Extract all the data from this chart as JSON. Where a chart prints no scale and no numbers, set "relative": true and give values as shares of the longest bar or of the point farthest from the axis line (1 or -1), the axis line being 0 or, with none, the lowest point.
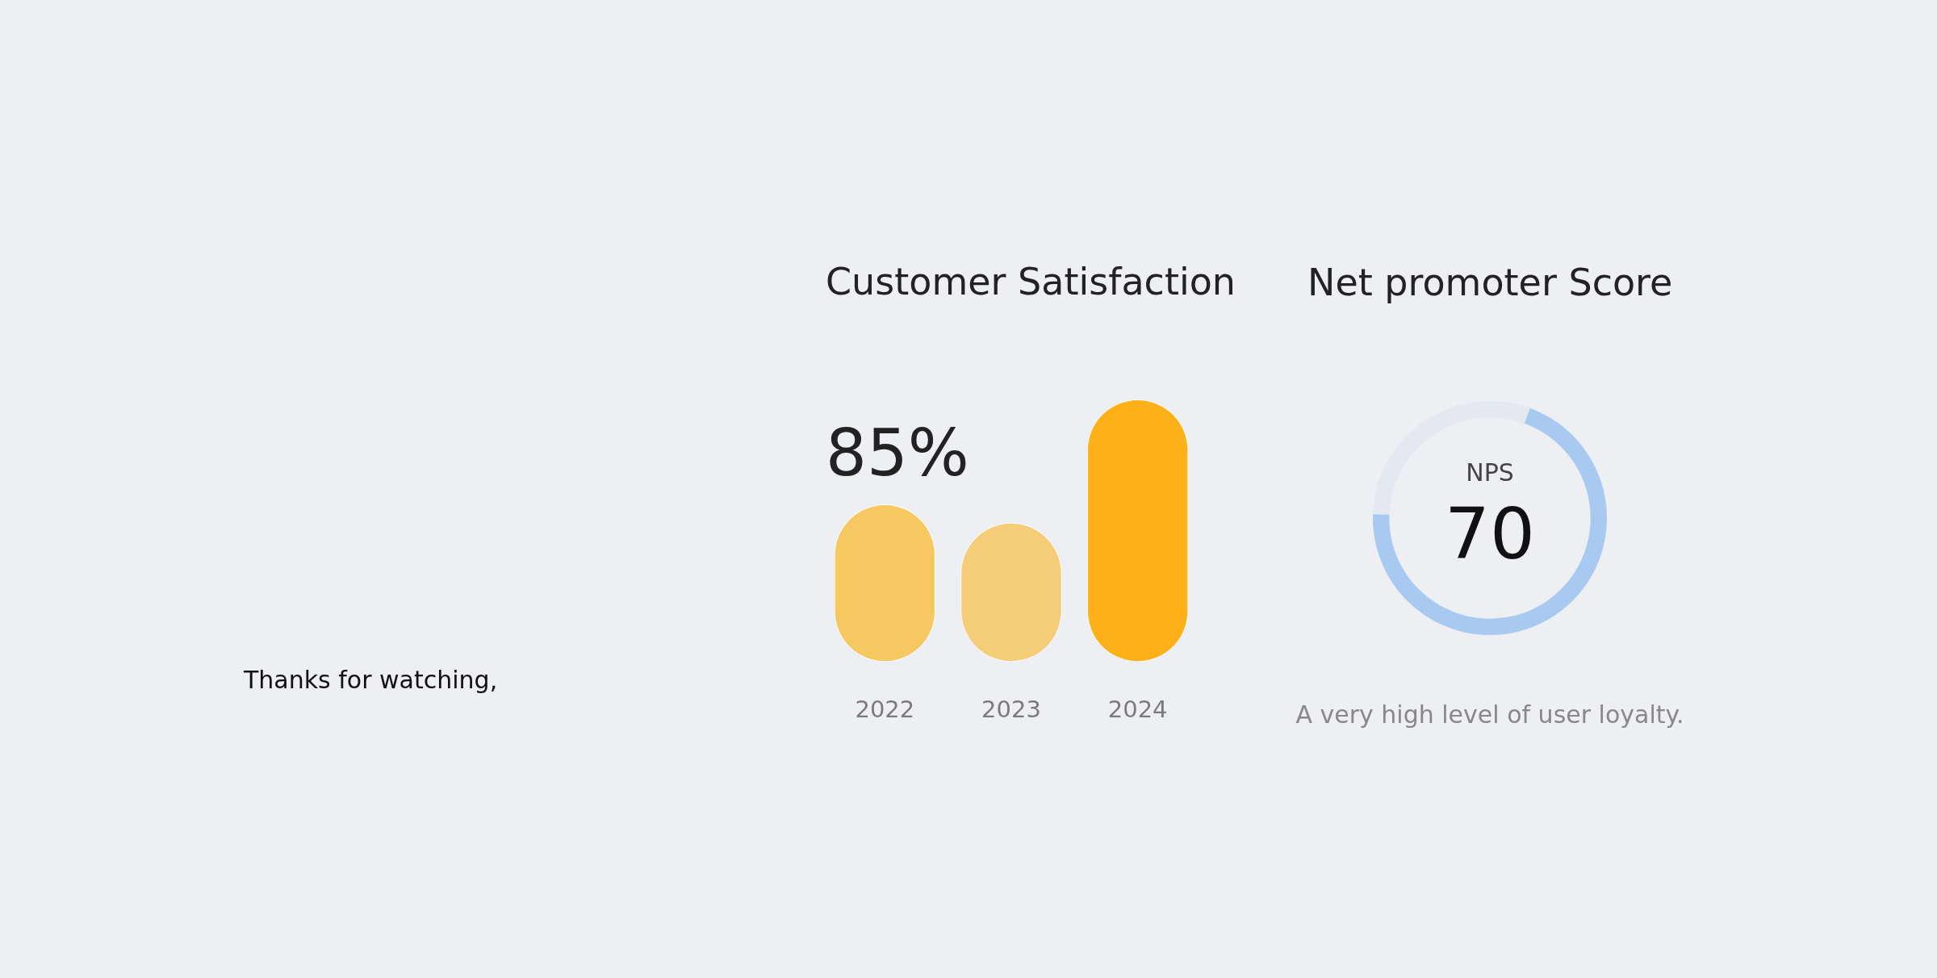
{
  "chart_data": [
    {
      "type": "bar",
      "title": "Customer Satisfaction",
      "categories": [
        "2022",
        "2023",
        "2024"
      ],
      "values": [
        0.6,
        0.53,
        1
      ],
      "colors": [
        "#f6c862",
        "#f5cd78",
        "#fdb017"
      ],
      "relative": true,
      "annotations": [
        "85%",
        "Thanks for watching,"
      ]
    },
    {
      "type": "donut",
      "title": "Net promoter Score",
      "categories": [
        null,
        null
      ],
      "values": [
        70,
        30
      ],
      "colors": [
        "#a8caf0",
        "#e4e9f0"
      ],
      "annotations": [
        "NPS",
        "70",
        "A very high level of user loyalty."
      ]
    }
  ]
}
